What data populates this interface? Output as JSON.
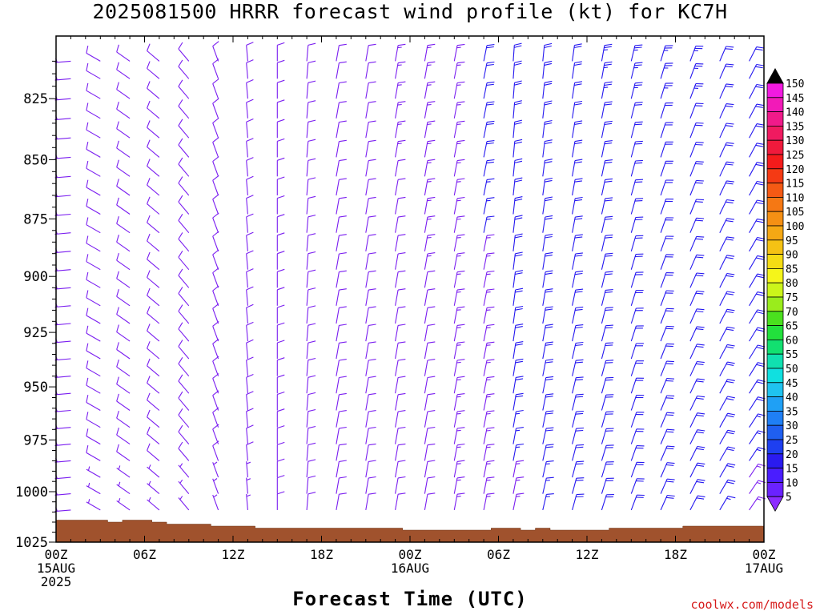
{
  "title": "2025081500 HRRR forecast wind profile (kt) for KC7H",
  "credit": "coolwx.com/models",
  "colors": {
    "background": "#ffffff",
    "terrain": "#a0522d",
    "barb_light": "#7a1df0",
    "barb_strong": "#2417f0",
    "axis": "#000000",
    "credit": "#d61b1b"
  },
  "chart_data": {
    "type": "wind_barb_profile",
    "title": "2025081500 HRRR forecast wind profile (kt) for KC7H",
    "xlabel": "Forecast Time (UTC)",
    "units": "kt",
    "ylim": [
      1025,
      805
    ],
    "y_axis": "Pressure (hPa), inverted",
    "y_ticks": [
      825,
      850,
      875,
      900,
      925,
      950,
      975,
      1000,
      1025
    ],
    "x_range_hours": [
      0,
      48
    ],
    "x_ticks": [
      {
        "hour": 0,
        "lines": [
          "00Z",
          "15AUG",
          "2025"
        ]
      },
      {
        "hour": 6,
        "lines": [
          "06Z"
        ]
      },
      {
        "hour": 12,
        "lines": [
          "12Z"
        ]
      },
      {
        "hour": 18,
        "lines": [
          "18Z"
        ]
      },
      {
        "hour": 24,
        "lines": [
          "00Z",
          "16AUG"
        ]
      },
      {
        "hour": 30,
        "lines": [
          "06Z"
        ]
      },
      {
        "hour": 36,
        "lines": [
          "12Z"
        ]
      },
      {
        "hour": 42,
        "lines": [
          "18Z"
        ]
      },
      {
        "hour": 48,
        "lines": [
          "00Z",
          "17AUG"
        ]
      }
    ],
    "forecast_hours": [
      1,
      3,
      5,
      7,
      9,
      11,
      13,
      15,
      17,
      19,
      21,
      23,
      25,
      27,
      29,
      31,
      33,
      35,
      37,
      39,
      41,
      43,
      45,
      47
    ],
    "pressure_levels": [
      810,
      817,
      825,
      833,
      841,
      849,
      857,
      865,
      873,
      881,
      889,
      897,
      905,
      913,
      921,
      929,
      937,
      945,
      953,
      961,
      969,
      977,
      985,
      993,
      1001,
      1009,
      1017
    ],
    "surface_pressure": [
      {
        "hour": 0,
        "hpa": 1014
      },
      {
        "hour": 2,
        "hpa": 1014
      },
      {
        "hour": 3.5,
        "hpa": 1015
      },
      {
        "hour": 4.5,
        "hpa": 1014
      },
      {
        "hour": 6.5,
        "hpa": 1015
      },
      {
        "hour": 7.5,
        "hpa": 1016
      },
      {
        "hour": 10.5,
        "hpa": 1017
      },
      {
        "hour": 13.5,
        "hpa": 1018
      },
      {
        "hour": 23.5,
        "hpa": 1019
      },
      {
        "hour": 29.5,
        "hpa": 1018
      },
      {
        "hour": 31.5,
        "hpa": 1019
      },
      {
        "hour": 32.5,
        "hpa": 1018
      },
      {
        "hour": 33.5,
        "hpa": 1019
      },
      {
        "hour": 37.5,
        "hpa": 1018
      },
      {
        "hour": 42.5,
        "hpa": 1017
      },
      {
        "hour": 48,
        "hpa": 1017
      }
    ],
    "wind_key_columns": [
      {
        "hour": 1,
        "from_deg": 265,
        "kt": 5
      },
      {
        "hour": 3,
        "from_deg": 300,
        "kt": 8
      },
      {
        "hour": 5,
        "from_deg": 305,
        "kt": 8
      },
      {
        "hour": 7,
        "from_deg": 310,
        "kt": 8
      },
      {
        "hour": 9,
        "from_deg": 320,
        "kt": 8
      },
      {
        "hour": 11,
        "from_deg": 340,
        "kt": 8
      },
      {
        "hour": 13,
        "from_deg": 355,
        "kt": 8
      },
      {
        "hour": 19,
        "from_deg": 10,
        "kt": 10
      },
      {
        "hour": 25,
        "from_deg": 10,
        "kt": 12
      },
      {
        "hour": 31,
        "from_deg": 12,
        "kt": 18
      },
      {
        "hour": 37,
        "from_deg": 18,
        "kt": 20
      },
      {
        "hour": 43,
        "from_deg": 28,
        "kt": 20
      },
      {
        "hour": 47,
        "from_deg": 35,
        "kt": 18
      }
    ],
    "legend": {
      "values": [
        5,
        10,
        15,
        20,
        25,
        30,
        35,
        40,
        45,
        50,
        55,
        60,
        65,
        70,
        75,
        80,
        85,
        90,
        95,
        100,
        105,
        110,
        115,
        120,
        125,
        130,
        135,
        140,
        145,
        150
      ],
      "labels": [
        "5",
        "10",
        "15",
        "20",
        "25",
        "30",
        "35",
        "40",
        "45",
        "50",
        "55",
        "60",
        "65",
        "70",
        "75",
        "80",
        "85",
        "90",
        "95",
        "100",
        "105",
        "110",
        "115",
        "120",
        "125",
        "130",
        "135",
        "140",
        "145",
        "150"
      ],
      "colors": [
        "#8c2cff",
        "#6a22ff",
        "#4a1dff",
        "#2a1bf0",
        "#1e3ff0",
        "#1f5ff0",
        "#1f7ff5",
        "#1fa0f5",
        "#1fc3f0",
        "#10e0e0",
        "#10e0b0",
        "#12e070",
        "#22e03c",
        "#4ae01e",
        "#9aec1c",
        "#ccf51a",
        "#f5f51a",
        "#f5dc14",
        "#f5c214",
        "#f5a814",
        "#f59014",
        "#f57814",
        "#f55a14",
        "#f53a14",
        "#f51b1b",
        "#f01a3c",
        "#f01a60",
        "#f01a8a",
        "#f21ab8",
        "#f21ae0"
      ]
    }
  }
}
